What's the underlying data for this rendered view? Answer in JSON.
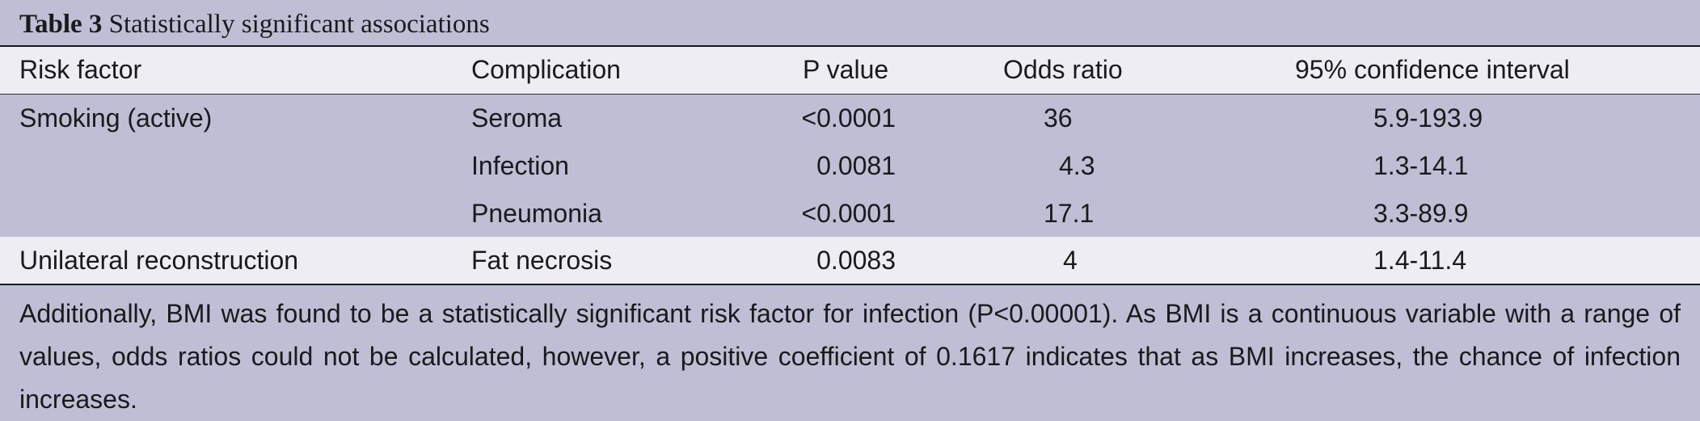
{
  "table": {
    "title_label": "Table 3",
    "title_text": "Statistically significant associations",
    "columns": [
      "Risk factor",
      "Complication",
      "P value",
      "Odds ratio",
      "95% confidence interval"
    ],
    "rows": [
      {
        "risk_factor": "Smoking (active)",
        "complication": "Seroma",
        "p_value": "<0.0001",
        "odds_ratio": "36",
        "ci": "5.9-193.9"
      },
      {
        "risk_factor": "",
        "complication": "Infection",
        "p_value": "0.0081",
        "odds_ratio": "4.3",
        "ci": "1.3-14.1"
      },
      {
        "risk_factor": "",
        "complication": "Pneumonia",
        "p_value": "<0.0001",
        "odds_ratio": "17.1",
        "ci": "3.3-89.9"
      },
      {
        "risk_factor": "Unilateral reconstruction",
        "complication": "Fat necrosis",
        "p_value": "0.0083",
        "odds_ratio": "4",
        "ci": "1.4-11.4"
      }
    ],
    "footnote": "Additionally, BMI was found to be a statistically significant risk factor for infection (P<0.00001). As BMI is a continuous variable with a range of values, odds ratios could not be calculated, however, a positive coefficient of 0.1617 indicates that as BMI increases, the chance of infection increases."
  }
}
